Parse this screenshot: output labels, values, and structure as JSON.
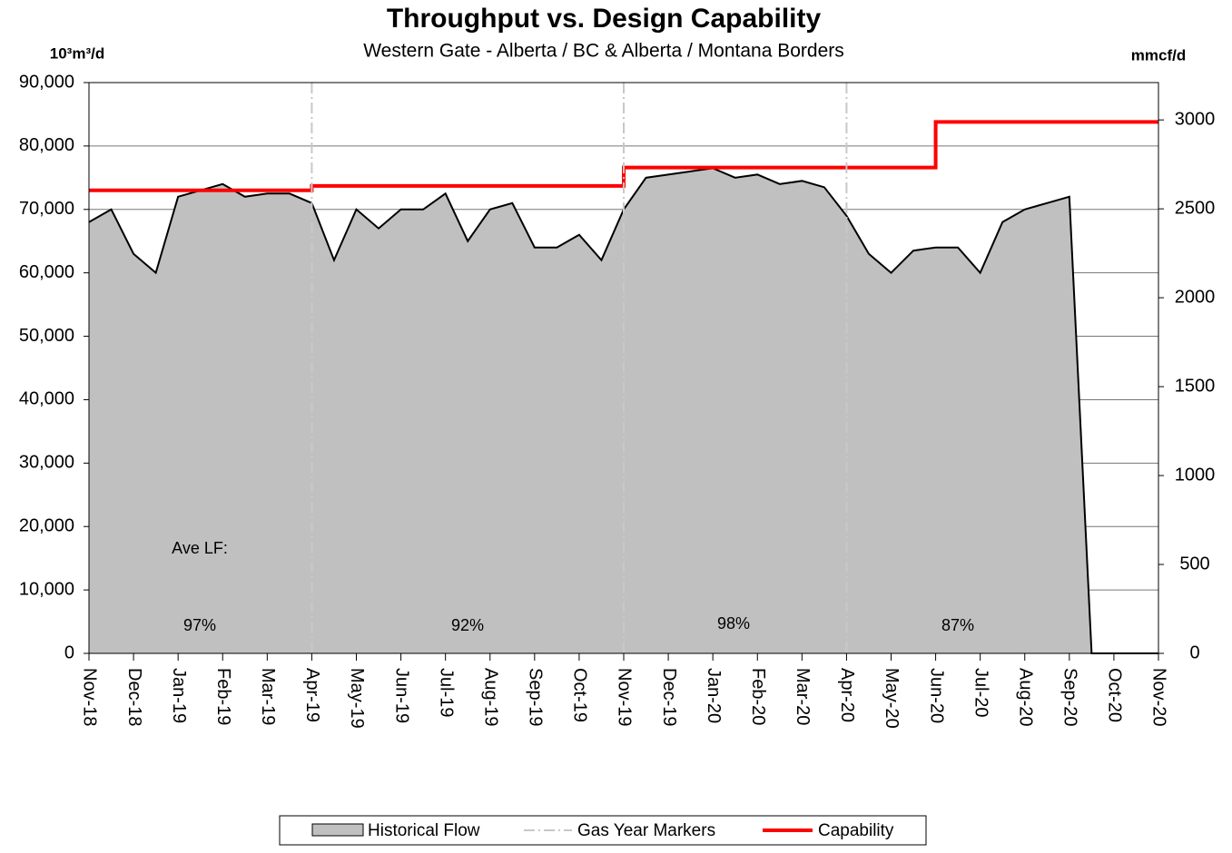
{
  "chart_data": {
    "type": "area",
    "title": "Throughput vs. Design Capability",
    "subtitle": "Western Gate - Alberta / BC & Alberta / Montana Borders",
    "ylabel": "10³m³/d",
    "y2label": "mmcf/d",
    "categories": [
      "Nov-18",
      null,
      "Dec-18",
      null,
      "Jan-19",
      null,
      "Feb-19",
      null,
      "Mar-19",
      null,
      "Apr-19",
      null,
      "May-19",
      null,
      "Jun-19",
      null,
      "Jul-19",
      null,
      "Aug-19",
      null,
      "Sep-19",
      null,
      "Oct-19",
      null,
      "Nov-19",
      null,
      "Dec-19",
      null,
      "Jan-20",
      null,
      "Feb-20",
      null,
      "Mar-20",
      null,
      "Apr-20",
      null,
      "May-20",
      null,
      "Jun-20",
      null,
      "Jul-20",
      null,
      "Aug-20",
      null,
      "Sep-20",
      null,
      "Oct-20",
      null,
      "Nov-20"
    ],
    "series": [
      {
        "name": "Historical Flow",
        "type": "area",
        "color": "#c0c0c0",
        "values": [
          68000,
          70000,
          63000,
          60000,
          72000,
          73000,
          74000,
          72000,
          72500,
          72500,
          71000,
          62000,
          70000,
          67000,
          70000,
          70000,
          72500,
          65000,
          70000,
          71000,
          64000,
          64000,
          66000,
          62000,
          70000,
          75000,
          75500,
          76000,
          76500,
          75000,
          75500,
          74000,
          74500,
          73500,
          69000,
          63000,
          60000,
          63500,
          64000,
          64000,
          60000,
          68000,
          70000,
          71000,
          72000,
          0,
          0,
          0,
          0
        ]
      },
      {
        "name": "Capability",
        "type": "step",
        "color": "#ff0000",
        "values": [
          73000,
          73000,
          73000,
          73000,
          73000,
          73000,
          73000,
          73000,
          73000,
          73000,
          73700,
          73700,
          73700,
          73700,
          73700,
          73700,
          73700,
          73700,
          73700,
          73700,
          73700,
          73700,
          73700,
          73700,
          76600,
          76600,
          76600,
          76600,
          76600,
          76600,
          76600,
          76600,
          76600,
          76600,
          76600,
          76600,
          76600,
          76600,
          83800,
          83800,
          83800,
          83800,
          83800,
          83800,
          83800,
          83800,
          83800,
          83800,
          83800
        ]
      }
    ],
    "markers": {
      "name": "Gas Year Markers",
      "color": "#c8c8c8",
      "at": [
        "Apr-19",
        "Nov-19",
        "Apr-20"
      ]
    },
    "annotations": [
      "Ave LF:",
      "97%",
      "92%",
      "98%",
      "87%"
    ],
    "ylim": [
      0,
      90000
    ],
    "yticks": [
      0,
      {
        "value": 10000,
        "label": "10,000"
      },
      {
        "value": 20000,
        "label": "20,000"
      },
      {
        "value": 30000,
        "label": "30,000"
      },
      {
        "value": 40000,
        "label": "40,000"
      },
      {
        "value": 50000,
        "label": "50,000"
      },
      {
        "value": 60000,
        "label": "60,000"
      },
      {
        "value": 70000,
        "label": "70,000"
      },
      {
        "value": 80000,
        "label": "80,000"
      },
      {
        "value": 90000,
        "label": "90,000"
      }
    ],
    "y2lim": [
      0,
      3210
    ],
    "y2ticks": [
      0,
      500,
      1000,
      1500,
      2000,
      2500,
      3000
    ],
    "grid": true,
    "legend": "bottom"
  }
}
